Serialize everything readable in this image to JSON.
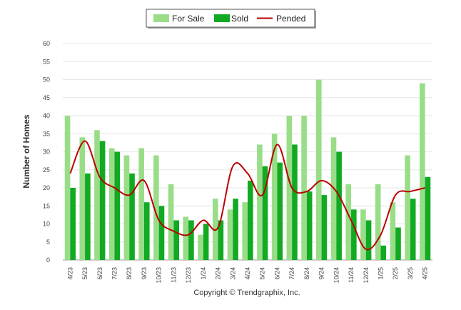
{
  "chart_data": {
    "type": "bar",
    "categories": [
      "4/23",
      "5/23",
      "6/23",
      "7/23",
      "8/23",
      "9/23",
      "10/23",
      "11/23",
      "12/23",
      "1/24",
      "2/24",
      "3/24",
      "4/24",
      "5/24",
      "6/24",
      "7/24",
      "8/24",
      "9/24",
      "10/24",
      "11/24",
      "12/24",
      "1/25",
      "2/25",
      "3/25",
      "4/25"
    ],
    "series": [
      {
        "name": "For Sale",
        "kind": "bar",
        "color": "#99dd88",
        "values": [
          40,
          34,
          36,
          31,
          29,
          31,
          29,
          21,
          12,
          7,
          17,
          14,
          16,
          32,
          35,
          40,
          40,
          50,
          34,
          21,
          14,
          21,
          16,
          29,
          49
        ]
      },
      {
        "name": "Sold",
        "kind": "bar",
        "color": "#11aa22",
        "values": [
          20,
          24,
          33,
          30,
          24,
          16,
          15,
          11,
          11,
          10,
          11,
          17,
          22,
          26,
          27,
          32,
          19,
          18,
          30,
          14,
          11,
          4,
          9,
          17,
          23
        ]
      },
      {
        "name": "Pended",
        "kind": "line",
        "color": "#bb0000",
        "values": [
          24,
          33,
          23,
          20,
          18,
          22,
          11,
          8,
          7,
          11,
          9,
          26,
          24,
          18,
          32,
          20,
          19,
          22,
          19,
          11,
          3,
          7,
          18,
          19,
          20
        ]
      }
    ],
    "ylabel": "Number of Homes",
    "xlabel": "",
    "ylim": [
      0,
      60
    ],
    "yticks": [
      0,
      5,
      10,
      15,
      20,
      25,
      30,
      35,
      40,
      45,
      50,
      55,
      60
    ],
    "grid": true,
    "legend_position": "top-center"
  },
  "footer": {
    "copyright": "Copyright © Trendgraphix, Inc."
  }
}
